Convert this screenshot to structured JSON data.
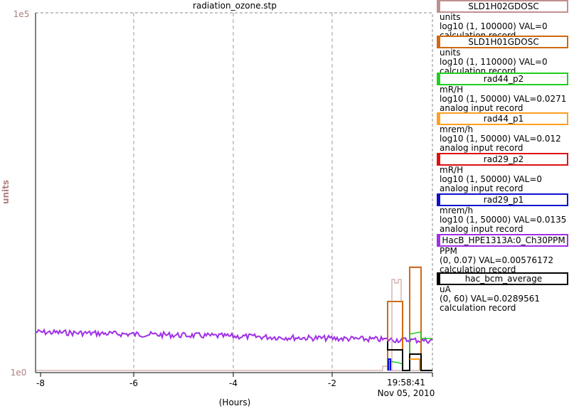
{
  "title": "radiation_ozone.stp",
  "y_axis": {
    "label": "units",
    "top": "1e5",
    "bottom": "1e0"
  },
  "x_axis": {
    "label": "(Hours)",
    "ticks": [
      "-8",
      "-6",
      "-4",
      "-2"
    ],
    "time": "19:58:41",
    "date": "Nov 05, 2010"
  },
  "legend": [
    {
      "name": "SLD1H02GDOSC",
      "color": "#c09090",
      "units": "units",
      "range": "log10 (1, 100000) VAL=0",
      "record": "calculation record"
    },
    {
      "name": "SLD1H01GDOSC",
      "color": "#d06a10",
      "units": "units",
      "range": "log10 (1, 110000) VAL=0",
      "record": "calculation record"
    },
    {
      "name": "rad44_p2",
      "color": "#20d020",
      "units": "mR/H",
      "range": "log10 (1, 50000) VAL=0.0271",
      "record": "analog input record"
    },
    {
      "name": "rad44_p1",
      "color": "#ffa020",
      "units": "mrem/h",
      "range": "log10 (1, 50000) VAL=0.012",
      "record": "analog input record"
    },
    {
      "name": "rad29_p2",
      "color": "#e01010",
      "units": "mR/H",
      "range": "log10 (1, 50000) VAL=0",
      "record": "analog input record"
    },
    {
      "name": "rad29_p1",
      "color": "#1010d0",
      "units": "mrem/h",
      "range": "log10 (1, 50000) VAL=0.0135",
      "record": "analog input record"
    },
    {
      "name": "HacB_HPE1313A:0_Ch30PPM",
      "color": "#a030e8",
      "units": "PPM",
      "range": "(0, 0.07) VAL=0.00576172",
      "record": "calculation record"
    },
    {
      "name": "hac_bcm_average",
      "color": "#000000",
      "units": "uA",
      "range": "(0, 60) VAL=0.0289561",
      "record": "calculation record"
    }
  ]
}
